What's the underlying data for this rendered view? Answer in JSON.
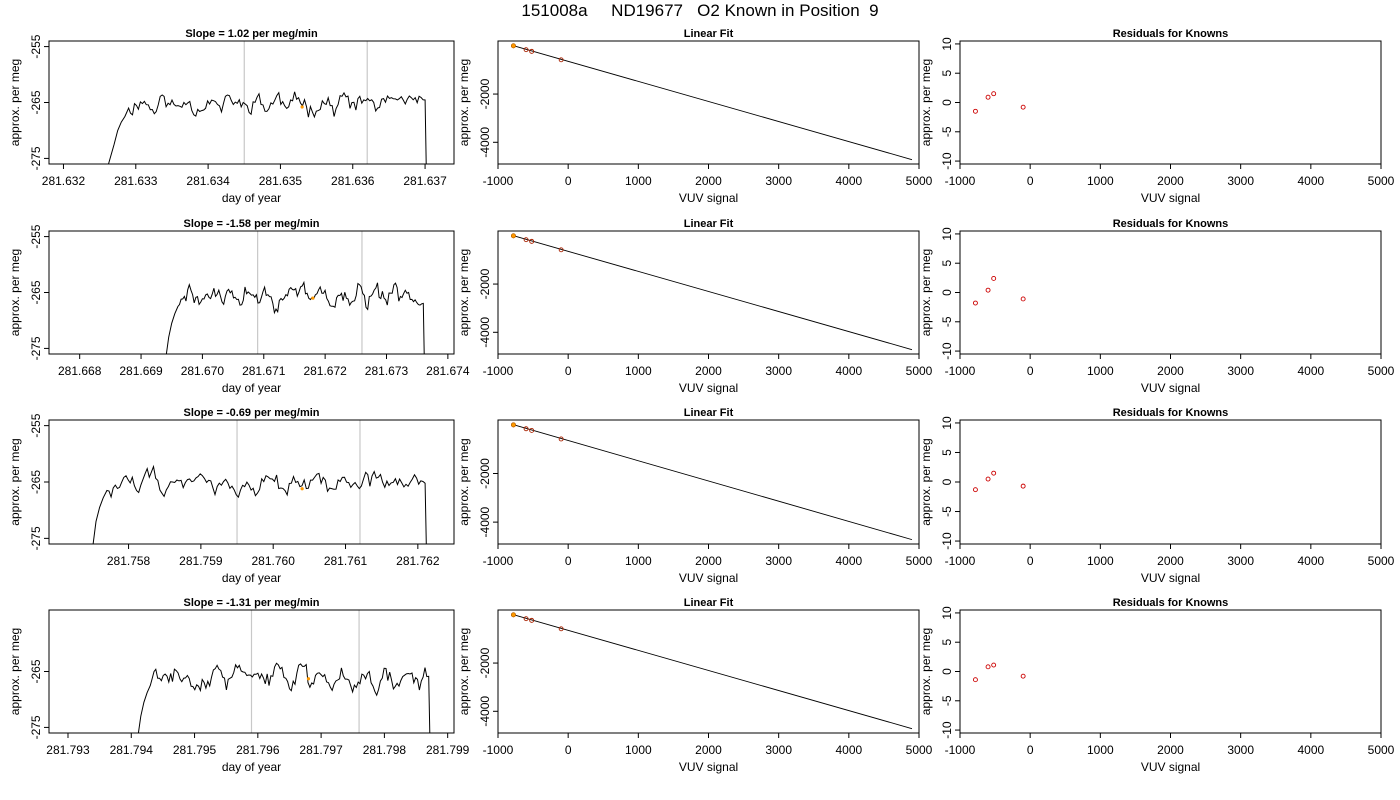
{
  "figure": {
    "title": "151008a     ND19677   O2 Known in Position  9"
  },
  "style": {
    "trace_color": "#000000",
    "marker_color": "#ff9900",
    "residual_color": "#cc0000",
    "known_color": "#aa2200",
    "guide_color": "#c8c8c8"
  },
  "chart_data": [
    {
      "row": 1,
      "type": "line",
      "title": "Slope =  1.02  per meg/min",
      "xlabel": "day of year",
      "ylabel": "approx. per meg",
      "xlim": [
        281.6318,
        281.6374
      ],
      "ylim": [
        -276,
        -254
      ],
      "xticks": [
        {
          "v": 281.632,
          "label": "281.632"
        },
        {
          "v": 281.633,
          "label": "281.633"
        },
        {
          "v": 281.634,
          "label": "281.634"
        },
        {
          "v": 281.635,
          "label": "281.635"
        },
        {
          "v": 281.636,
          "label": "281.636"
        },
        {
          "v": 281.637,
          "label": "281.637"
        }
      ],
      "yticks": [
        {
          "v": -255,
          "label": "-255"
        },
        {
          "v": -265,
          "label": "-265"
        },
        {
          "v": -275,
          "label": "-275"
        }
      ],
      "vlines": [
        281.6345,
        281.6362
      ],
      "marker": {
        "x": 281.6353,
        "y": -265.8
      },
      "trace": {
        "x_start": 281.6326,
        "x_end": 281.637,
        "base": -265.2,
        "amp": 1.4,
        "edge_low": -277,
        "seed": 11,
        "x": [
          281.6326,
          281.6327,
          281.63275,
          281.6328,
          281.63285,
          281.6329
        ],
        "y": [
          -277,
          -272.5,
          -270.0,
          -268.5,
          -267.5,
          -266.0
        ]
      }
    },
    {
      "row": 2,
      "type": "line",
      "title": "Slope =  -1.58  per meg/min",
      "xlabel": "day of year",
      "ylabel": "approx. per meg",
      "xlim": [
        281.6675,
        281.6741
      ],
      "ylim": [
        -276,
        -254
      ],
      "xticks": [
        {
          "v": 281.668,
          "label": "281.668"
        },
        {
          "v": 281.669,
          "label": "281.669"
        },
        {
          "v": 281.67,
          "label": "281.670"
        },
        {
          "v": 281.671,
          "label": "281.671"
        },
        {
          "v": 281.672,
          "label": "281.672"
        },
        {
          "v": 281.673,
          "label": "281.673"
        },
        {
          "v": 281.674,
          "label": "281.674"
        }
      ],
      "yticks": [
        {
          "v": -255,
          "label": "-255"
        },
        {
          "v": -265,
          "label": "-265"
        },
        {
          "v": -275,
          "label": "-275"
        }
      ],
      "vlines": [
        281.6709,
        281.6726
      ],
      "marker": {
        "x": 281.6718,
        "y": -266.0
      },
      "trace": {
        "x_start": 281.6694,
        "x_end": 281.6736,
        "base": -265.8,
        "amp": 1.5,
        "edge_low": -277,
        "seed": 29,
        "x": [
          281.6694,
          281.66945,
          281.6695,
          281.66955,
          281.6696
        ],
        "y": [
          -277,
          -273.0,
          -270.5,
          -268.8,
          -267.5
        ]
      }
    },
    {
      "row": 3,
      "type": "line",
      "title": "Slope =  -0.69  per meg/min",
      "xlabel": "day of year",
      "ylabel": "approx. per meg",
      "xlim": [
        281.7569,
        281.7625
      ],
      "ylim": [
        -276,
        -254
      ],
      "xticks": [
        {
          "v": 281.758,
          "label": "281.758"
        },
        {
          "v": 281.759,
          "label": "281.759"
        },
        {
          "v": 281.76,
          "label": "281.760"
        },
        {
          "v": 281.761,
          "label": "281.761"
        },
        {
          "v": 281.762,
          "label": "281.762"
        }
      ],
      "yticks": [
        {
          "v": -255,
          "label": "-255"
        },
        {
          "v": -265,
          "label": "-265"
        },
        {
          "v": -275,
          "label": "-275"
        }
      ],
      "vlines": [
        281.7595,
        281.7612
      ],
      "marker": {
        "x": 281.7604,
        "y": -266.2
      },
      "trace": {
        "x_start": 281.7575,
        "x_end": 281.7621,
        "base": -265.2,
        "amp": 1.5,
        "edge_low": -277,
        "seed": 47,
        "x": [
          281.7575,
          281.75755,
          281.7576,
          281.75765,
          281.7577
        ],
        "y": [
          -277,
          -272.0,
          -269.5,
          -267.8,
          -266.5
        ]
      }
    },
    {
      "row": 4,
      "type": "line",
      "title": "Slope =  -1.31  per meg/min",
      "xlabel": "day of year",
      "ylabel": "approx. per meg",
      "xlim": [
        281.7927,
        281.7991
      ],
      "ylim": [
        -276,
        -254
      ],
      "xticks": [
        {
          "v": 281.793,
          "label": "281.793"
        },
        {
          "v": 281.794,
          "label": "281.794"
        },
        {
          "v": 281.795,
          "label": "281.795"
        },
        {
          "v": 281.796,
          "label": "281.796"
        },
        {
          "v": 281.797,
          "label": "281.797"
        },
        {
          "v": 281.798,
          "label": "281.798"
        },
        {
          "v": 281.799,
          "label": "281.799"
        }
      ],
      "yticks": [
        {
          "v": -265,
          "label": "-265"
        },
        {
          "v": -275,
          "label": "-275"
        }
      ],
      "vlines": [
        281.7959,
        281.7976
      ],
      "marker": {
        "x": 281.7968,
        "y": -266.3
      },
      "trace": {
        "x_start": 281.7941,
        "x_end": 281.7987,
        "base": -266.0,
        "amp": 1.6,
        "edge_low": -277,
        "seed": 83,
        "x": [
          281.7941,
          281.79415,
          281.7942,
          281.79425,
          281.7943
        ],
        "y": [
          -277,
          -273.0,
          -270.5,
          -268.8,
          -267.5
        ]
      }
    },
    {
      "row": 1,
      "type": "scatter",
      "title": "Linear Fit",
      "xlabel": "VUV signal",
      "ylabel": "approx. per meg",
      "xlim": [
        -1000,
        5000
      ],
      "ylim": [
        -4900,
        200
      ],
      "xticks": [
        {
          "v": -1000,
          "label": "-1000"
        },
        {
          "v": 0,
          "label": "0"
        },
        {
          "v": 1000,
          "label": "1000"
        },
        {
          "v": 2000,
          "label": "2000"
        },
        {
          "v": 3000,
          "label": "3000"
        },
        {
          "v": 4000,
          "label": "4000"
        },
        {
          "v": 5000,
          "label": "5000"
        }
      ],
      "yticks": [
        {
          "v": -2000,
          "label": "-2000"
        },
        {
          "v": -4000,
          "label": "-4000"
        }
      ],
      "fit_line": {
        "x": [
          -780,
          4900
        ],
        "y": [
          5,
          -4720
        ]
      },
      "points": {
        "x": [
          -780,
          -600,
          -520,
          -100
        ],
        "y": [
          0,
          -160,
          -230,
          -580
        ]
      },
      "highlight": {
        "x": -780,
        "y": 0
      }
    },
    {
      "row": 2,
      "type": "scatter",
      "title": "Linear Fit",
      "xlabel": "VUV signal",
      "ylabel": "approx. per meg",
      "xlim": [
        -1000,
        5000
      ],
      "ylim": [
        -4900,
        200
      ],
      "xticks": [
        {
          "v": -1000,
          "label": "-1000"
        },
        {
          "v": 0,
          "label": "0"
        },
        {
          "v": 1000,
          "label": "1000"
        },
        {
          "v": 2000,
          "label": "2000"
        },
        {
          "v": 3000,
          "label": "3000"
        },
        {
          "v": 4000,
          "label": "4000"
        },
        {
          "v": 5000,
          "label": "5000"
        }
      ],
      "yticks": [
        {
          "v": -2000,
          "label": "-2000"
        },
        {
          "v": -4000,
          "label": "-4000"
        }
      ],
      "fit_line": {
        "x": [
          -780,
          4900
        ],
        "y": [
          5,
          -4720
        ]
      },
      "points": {
        "x": [
          -780,
          -600,
          -520,
          -100
        ],
        "y": [
          0,
          -160,
          -230,
          -580
        ]
      },
      "highlight": {
        "x": -780,
        "y": 0
      }
    },
    {
      "row": 3,
      "type": "scatter",
      "title": "Linear Fit",
      "xlabel": "VUV signal",
      "ylabel": "approx. per meg",
      "xlim": [
        -1000,
        5000
      ],
      "ylim": [
        -4900,
        200
      ],
      "xticks": [
        {
          "v": -1000,
          "label": "-1000"
        },
        {
          "v": 0,
          "label": "0"
        },
        {
          "v": 1000,
          "label": "1000"
        },
        {
          "v": 2000,
          "label": "2000"
        },
        {
          "v": 3000,
          "label": "3000"
        },
        {
          "v": 4000,
          "label": "4000"
        },
        {
          "v": 5000,
          "label": "5000"
        }
      ],
      "yticks": [
        {
          "v": -2000,
          "label": "-2000"
        },
        {
          "v": -4000,
          "label": "-4000"
        }
      ],
      "fit_line": {
        "x": [
          -780,
          4900
        ],
        "y": [
          5,
          -4720
        ]
      },
      "points": {
        "x": [
          -780,
          -600,
          -520,
          -100
        ],
        "y": [
          0,
          -160,
          -230,
          -580
        ]
      },
      "highlight": {
        "x": -780,
        "y": 0
      }
    },
    {
      "row": 4,
      "type": "scatter",
      "title": "Linear Fit",
      "xlabel": "VUV signal",
      "ylabel": "approx. per meg",
      "xlim": [
        -1000,
        5000
      ],
      "ylim": [
        -4900,
        200
      ],
      "xticks": [
        {
          "v": -1000,
          "label": "-1000"
        },
        {
          "v": 0,
          "label": "0"
        },
        {
          "v": 1000,
          "label": "1000"
        },
        {
          "v": 2000,
          "label": "2000"
        },
        {
          "v": 3000,
          "label": "3000"
        },
        {
          "v": 4000,
          "label": "4000"
        },
        {
          "v": 5000,
          "label": "5000"
        }
      ],
      "yticks": [
        {
          "v": -2000,
          "label": "-2000"
        },
        {
          "v": -4000,
          "label": "-4000"
        }
      ],
      "fit_line": {
        "x": [
          -780,
          4900
        ],
        "y": [
          5,
          -4720
        ]
      },
      "points": {
        "x": [
          -780,
          -600,
          -520,
          -100
        ],
        "y": [
          0,
          -160,
          -230,
          -580
        ]
      },
      "highlight": {
        "x": -780,
        "y": 0
      }
    },
    {
      "row": 1,
      "type": "scatter",
      "title": "Residuals for Knowns",
      "xlabel": "VUV signal",
      "ylabel": "approx. per meg",
      "xlim": [
        -1000,
        5000
      ],
      "ylim": [
        -10.5,
        10.5
      ],
      "xticks": [
        {
          "v": -1000,
          "label": "-1000"
        },
        {
          "v": 0,
          "label": "0"
        },
        {
          "v": 1000,
          "label": "1000"
        },
        {
          "v": 2000,
          "label": "2000"
        },
        {
          "v": 3000,
          "label": "3000"
        },
        {
          "v": 4000,
          "label": "4000"
        },
        {
          "v": 5000,
          "label": "5000"
        }
      ],
      "yticks": [
        {
          "v": 10,
          "label": "10"
        },
        {
          "v": 5,
          "label": "5"
        },
        {
          "v": 0,
          "label": "0"
        },
        {
          "v": -5,
          "label": "-5"
        },
        {
          "v": -10,
          "label": "-10"
        }
      ],
      "points": {
        "x": [
          -780,
          -600,
          -520,
          -100
        ],
        "y": [
          -1.5,
          0.9,
          1.5,
          -0.8
        ]
      }
    },
    {
      "row": 2,
      "type": "scatter",
      "title": "Residuals for Knowns",
      "xlabel": "VUV signal",
      "ylabel": "approx. per meg",
      "xlim": [
        -1000,
        5000
      ],
      "ylim": [
        -10.5,
        10.5
      ],
      "xticks": [
        {
          "v": -1000,
          "label": "-1000"
        },
        {
          "v": 0,
          "label": "0"
        },
        {
          "v": 1000,
          "label": "1000"
        },
        {
          "v": 2000,
          "label": "2000"
        },
        {
          "v": 3000,
          "label": "3000"
        },
        {
          "v": 4000,
          "label": "4000"
        },
        {
          "v": 5000,
          "label": "5000"
        }
      ],
      "yticks": [
        {
          "v": 10,
          "label": "10"
        },
        {
          "v": 5,
          "label": "5"
        },
        {
          "v": 0,
          "label": "0"
        },
        {
          "v": -5,
          "label": "-5"
        },
        {
          "v": -10,
          "label": "-10"
        }
      ],
      "points": {
        "x": [
          -780,
          -600,
          -520,
          -100
        ],
        "y": [
          -1.8,
          0.4,
          2.4,
          -1.1
        ]
      }
    },
    {
      "row": 3,
      "type": "scatter",
      "title": "Residuals for Knowns",
      "xlabel": "VUV signal",
      "ylabel": "approx. per meg",
      "xlim": [
        -1000,
        5000
      ],
      "ylim": [
        -10.5,
        10.5
      ],
      "xticks": [
        {
          "v": -1000,
          "label": "-1000"
        },
        {
          "v": 0,
          "label": "0"
        },
        {
          "v": 1000,
          "label": "1000"
        },
        {
          "v": 2000,
          "label": "2000"
        },
        {
          "v": 3000,
          "label": "3000"
        },
        {
          "v": 4000,
          "label": "4000"
        },
        {
          "v": 5000,
          "label": "5000"
        }
      ],
      "yticks": [
        {
          "v": 10,
          "label": "10"
        },
        {
          "v": 5,
          "label": "5"
        },
        {
          "v": 0,
          "label": "0"
        },
        {
          "v": -5,
          "label": "-5"
        },
        {
          "v": -10,
          "label": "-10"
        }
      ],
      "points": {
        "x": [
          -780,
          -600,
          -520,
          -100
        ],
        "y": [
          -1.3,
          0.5,
          1.5,
          -0.7
        ]
      }
    },
    {
      "row": 4,
      "type": "scatter",
      "title": "Residuals for Knowns",
      "xlabel": "VUV signal",
      "ylabel": "approx. per meg",
      "xlim": [
        -1000,
        5000
      ],
      "ylim": [
        -10.5,
        10.5
      ],
      "xticks": [
        {
          "v": -1000,
          "label": "-1000"
        },
        {
          "v": 0,
          "label": "0"
        },
        {
          "v": 1000,
          "label": "1000"
        },
        {
          "v": 2000,
          "label": "2000"
        },
        {
          "v": 3000,
          "label": "3000"
        },
        {
          "v": 4000,
          "label": "4000"
        },
        {
          "v": 5000,
          "label": "5000"
        }
      ],
      "yticks": [
        {
          "v": 10,
          "label": "10"
        },
        {
          "v": 5,
          "label": "5"
        },
        {
          "v": 0,
          "label": "0"
        },
        {
          "v": -5,
          "label": "-5"
        },
        {
          "v": -10,
          "label": "-10"
        }
      ],
      "points": {
        "x": [
          -780,
          -600,
          -520,
          -100
        ],
        "y": [
          -1.4,
          0.8,
          1.1,
          -0.8
        ]
      }
    }
  ]
}
